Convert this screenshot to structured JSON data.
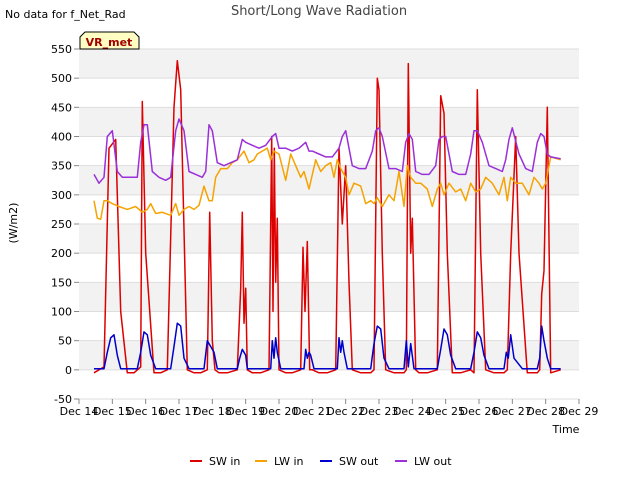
{
  "note": "No data for f_Net_Rad",
  "chart_data": {
    "type": "line",
    "title": "Short/Long Wave Radiation",
    "xlabel": "Time",
    "ylabel": "(W/m2)",
    "badge": "VR_met",
    "ylim": [
      -50,
      550
    ],
    "yticks": [
      -50,
      0,
      50,
      100,
      150,
      200,
      250,
      300,
      350,
      400,
      450,
      500,
      550
    ],
    "xlim": [
      14,
      29
    ],
    "xticks": [
      {
        "v": 14,
        "label": "Dec 14"
      },
      {
        "v": 15,
        "label": "Dec 15"
      },
      {
        "v": 16,
        "label": "Dec 16"
      },
      {
        "v": 17,
        "label": "Dec 17"
      },
      {
        "v": 18,
        "label": "Dec 18"
      },
      {
        "v": 19,
        "label": "Dec 19"
      },
      {
        "v": 20,
        "label": "Dec 20"
      },
      {
        "v": 21,
        "label": "Dec 21"
      },
      {
        "v": 22,
        "label": "Dec 22"
      },
      {
        "v": 23,
        "label": "Dec 23"
      },
      {
        "v": 24,
        "label": "Dec 24"
      },
      {
        "v": 25,
        "label": "Dec 25"
      },
      {
        "v": 26,
        "label": "Dec 26"
      },
      {
        "v": 27,
        "label": "Dec 27"
      },
      {
        "v": 28,
        "label": "Dec 28"
      },
      {
        "v": 29,
        "label": "Dec 29"
      }
    ],
    "grid": true,
    "legend_position": "bottom",
    "series": [
      {
        "name": "SW in",
        "color": "#dd0000",
        "x": [
          14.45,
          14.75,
          14.9,
          15.1,
          15.25,
          15.45,
          15.65,
          15.85,
          15.9,
          16.0,
          16.25,
          16.45,
          16.65,
          16.85,
          16.95,
          17.05,
          17.25,
          17.45,
          17.65,
          17.85,
          17.92,
          18.0,
          18.08,
          18.2,
          18.45,
          18.75,
          18.85,
          18.9,
          18.95,
          19.0,
          19.05,
          19.2,
          19.45,
          19.7,
          19.78,
          19.82,
          19.86,
          19.9,
          19.95,
          20.0,
          20.2,
          20.4,
          20.65,
          20.72,
          20.78,
          20.85,
          20.92,
          21.0,
          21.2,
          21.45,
          21.7,
          21.8,
          21.9,
          22.0,
          22.1,
          22.2,
          22.45,
          22.75,
          22.85,
          22.95,
          23.0,
          23.1,
          23.2,
          23.45,
          23.75,
          23.82,
          23.88,
          23.95,
          24.0,
          24.1,
          24.2,
          24.45,
          24.75,
          24.85,
          24.95,
          25.05,
          25.2,
          25.45,
          25.75,
          25.85,
          25.95,
          26.05,
          26.2,
          26.45,
          26.75,
          26.85,
          26.95,
          27.1,
          27.2,
          27.45,
          27.75,
          27.82,
          27.88,
          27.95,
          28.05,
          28.15,
          28.45
        ],
        "y": [
          -5,
          5,
          380,
          395,
          100,
          -5,
          -5,
          5,
          460,
          200,
          -5,
          -5,
          0,
          450,
          530,
          480,
          0,
          -5,
          -5,
          0,
          270,
          50,
          0,
          -5,
          -5,
          0,
          140,
          270,
          80,
          140,
          0,
          -5,
          -5,
          0,
          400,
          100,
          380,
          150,
          260,
          0,
          -5,
          -5,
          0,
          210,
          100,
          220,
          0,
          0,
          -5,
          -5,
          0,
          380,
          250,
          350,
          150,
          0,
          -5,
          -5,
          0,
          500,
          480,
          200,
          0,
          -5,
          -5,
          0,
          525,
          200,
          260,
          0,
          -5,
          -5,
          0,
          470,
          440,
          200,
          -5,
          -5,
          0,
          -5,
          480,
          200,
          0,
          -5,
          -5,
          0,
          200,
          400,
          200,
          -5,
          -5,
          0,
          130,
          170,
          450,
          -5,
          0
        ]
      },
      {
        "name": "LW in",
        "color": "#f5a300",
        "x": [
          14.45,
          14.55,
          14.65,
          14.75,
          14.85,
          15.0,
          15.2,
          15.45,
          15.7,
          15.9,
          16.05,
          16.15,
          16.3,
          16.5,
          16.75,
          16.9,
          17.0,
          17.15,
          17.3,
          17.45,
          17.6,
          17.75,
          17.9,
          18.0,
          18.1,
          18.25,
          18.45,
          18.6,
          18.75,
          18.95,
          19.1,
          19.25,
          19.35,
          19.5,
          19.65,
          19.75,
          19.85,
          20.0,
          20.2,
          20.35,
          20.5,
          20.65,
          20.75,
          20.9,
          21.1,
          21.25,
          21.4,
          21.55,
          21.65,
          21.75,
          21.85,
          22.0,
          22.1,
          22.25,
          22.45,
          22.6,
          22.75,
          22.85,
          22.95,
          23.1,
          23.3,
          23.45,
          23.6,
          23.75,
          23.85,
          23.95,
          24.1,
          24.25,
          24.45,
          24.6,
          24.75,
          24.85,
          24.95,
          25.1,
          25.3,
          25.45,
          25.6,
          25.75,
          25.9,
          26.05,
          26.2,
          26.4,
          26.6,
          26.75,
          26.85,
          26.95,
          27.1,
          27.3,
          27.5,
          27.65,
          27.8,
          27.9,
          28.0,
          28.15,
          28.45
        ],
        "y": [
          290,
          260,
          258,
          290,
          290,
          285,
          280,
          275,
          280,
          270,
          275,
          285,
          268,
          270,
          265,
          285,
          265,
          275,
          280,
          275,
          282,
          315,
          290,
          290,
          330,
          345,
          345,
          355,
          360,
          375,
          355,
          360,
          370,
          375,
          380,
          360,
          375,
          370,
          325,
          370,
          350,
          330,
          340,
          310,
          360,
          340,
          350,
          355,
          330,
          360,
          345,
          330,
          300,
          320,
          315,
          285,
          290,
          285,
          295,
          280,
          300,
          290,
          340,
          280,
          350,
          330,
          320,
          320,
          310,
          280,
          310,
          320,
          300,
          320,
          305,
          310,
          290,
          320,
          305,
          310,
          330,
          320,
          300,
          330,
          290,
          330,
          320,
          320,
          300,
          330,
          320,
          310,
          320,
          365,
          360
        ]
      },
      {
        "name": "SW out",
        "color": "#0000cc",
        "x": [
          14.45,
          14.75,
          14.85,
          14.95,
          15.05,
          15.15,
          15.25,
          15.45,
          15.75,
          15.85,
          15.95,
          16.05,
          16.15,
          16.3,
          16.75,
          16.85,
          16.95,
          17.05,
          17.15,
          17.3,
          17.75,
          17.85,
          17.95,
          18.05,
          18.15,
          18.3,
          18.75,
          18.82,
          18.9,
          19.0,
          19.05,
          19.3,
          19.75,
          19.8,
          19.85,
          19.9,
          19.95,
          20.05,
          20.3,
          20.75,
          20.8,
          20.85,
          20.9,
          20.95,
          21.05,
          21.3,
          21.75,
          21.8,
          21.85,
          21.9,
          21.95,
          22.05,
          22.3,
          22.75,
          22.85,
          22.95,
          23.05,
          23.15,
          23.3,
          23.75,
          23.82,
          23.88,
          23.95,
          24.05,
          24.3,
          24.75,
          24.85,
          24.95,
          25.05,
          25.15,
          25.3,
          25.75,
          25.85,
          25.95,
          26.05,
          26.15,
          26.3,
          26.75,
          26.82,
          26.88,
          26.95,
          27.05,
          27.3,
          27.75,
          27.82,
          27.88,
          27.95,
          28.05,
          28.15,
          28.45
        ],
        "y": [
          2,
          2,
          30,
          55,
          60,
          25,
          2,
          2,
          2,
          30,
          65,
          60,
          25,
          2,
          2,
          40,
          80,
          75,
          20,
          2,
          2,
          50,
          40,
          30,
          2,
          2,
          2,
          20,
          35,
          25,
          2,
          2,
          2,
          50,
          20,
          55,
          30,
          2,
          2,
          2,
          35,
          20,
          30,
          25,
          2,
          2,
          2,
          55,
          30,
          50,
          30,
          2,
          2,
          2,
          45,
          75,
          70,
          20,
          2,
          2,
          50,
          5,
          45,
          2,
          2,
          2,
          35,
          70,
          60,
          25,
          2,
          2,
          30,
          65,
          55,
          25,
          2,
          2,
          30,
          20,
          60,
          20,
          2,
          2,
          20,
          75,
          50,
          20,
          2,
          2
        ]
      },
      {
        "name": "LW out",
        "color": "#9b30d9",
        "x": [
          14.45,
          14.6,
          14.75,
          14.85,
          15.0,
          15.15,
          15.3,
          15.5,
          15.75,
          15.85,
          15.95,
          16.05,
          16.2,
          16.4,
          16.6,
          16.75,
          16.9,
          17.0,
          17.15,
          17.3,
          17.5,
          17.7,
          17.8,
          17.9,
          18.0,
          18.15,
          18.35,
          18.55,
          18.75,
          18.9,
          19.0,
          19.2,
          19.4,
          19.6,
          19.8,
          19.9,
          20.0,
          20.2,
          20.4,
          20.6,
          20.8,
          20.9,
          21.0,
          21.2,
          21.4,
          21.6,
          21.8,
          21.9,
          22.0,
          22.2,
          22.4,
          22.6,
          22.8,
          22.9,
          23.0,
          23.1,
          23.3,
          23.5,
          23.7,
          23.8,
          23.9,
          24.0,
          24.1,
          24.3,
          24.5,
          24.7,
          24.8,
          24.9,
          25.0,
          25.2,
          25.4,
          25.6,
          25.75,
          25.85,
          25.95,
          26.1,
          26.3,
          26.5,
          26.7,
          26.8,
          26.9,
          27.0,
          27.2,
          27.4,
          27.6,
          27.75,
          27.85,
          27.95,
          28.05,
          28.15,
          28.45
        ],
        "y": [
          335,
          320,
          330,
          400,
          410,
          340,
          330,
          330,
          330,
          390,
          420,
          420,
          340,
          330,
          325,
          330,
          410,
          430,
          410,
          340,
          335,
          330,
          340,
          420,
          410,
          355,
          350,
          355,
          360,
          395,
          390,
          385,
          380,
          385,
          400,
          405,
          380,
          380,
          375,
          380,
          390,
          375,
          375,
          370,
          365,
          365,
          380,
          400,
          410,
          350,
          345,
          345,
          375,
          410,
          415,
          400,
          345,
          345,
          340,
          390,
          405,
          395,
          340,
          335,
          335,
          350,
          395,
          400,
          400,
          340,
          335,
          335,
          370,
          410,
          410,
          390,
          350,
          345,
          340,
          360,
          395,
          415,
          370,
          345,
          340,
          390,
          405,
          400,
          370,
          365,
          362
        ]
      }
    ]
  }
}
